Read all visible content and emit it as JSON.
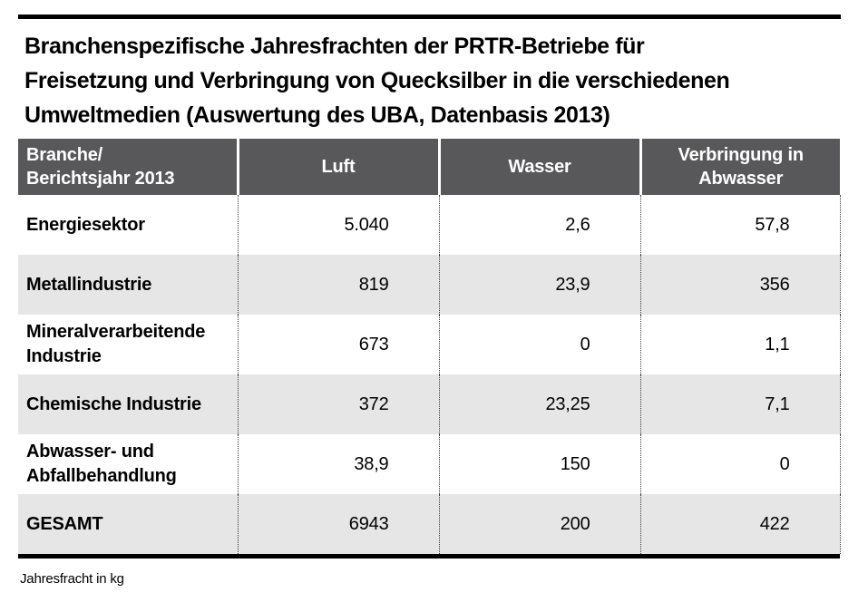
{
  "title": "Branchenspezifische Jahresfrachten der PRTR-Betriebe für\nFreisetzung und Verbringung von Quecksilber in die verschiedenen\nUmweltmedien (Auswertung des UBA, Datenbasis 2013)",
  "caption": "Jahresfracht in kg",
  "colors": {
    "header_bg": "#58585a",
    "alt_row_bg": "#e7e6e6",
    "rule": "#000000",
    "header_text": "#ffffff",
    "body_text": "#000000"
  },
  "table": {
    "headers": {
      "branche": "Branche/\nBerichtsjahr 2013",
      "luft": "Luft",
      "wasser": "Wasser",
      "verbringung": "Verbringung in\nAbwasser"
    },
    "rows": [
      {
        "label": "Energiesektor",
        "luft": "5.040",
        "wasser": "2,6",
        "verbringung": "57,8"
      },
      {
        "label": "Metallindustrie",
        "luft": "819",
        "wasser": "23,9",
        "verbringung": "356"
      },
      {
        "label": "Mineralverarbeitende\nIndustrie",
        "luft": "673",
        "wasser": "0",
        "verbringung": "1,1"
      },
      {
        "label": "Chemische Industrie",
        "luft": "372",
        "wasser": "23,25",
        "verbringung": "7,1"
      },
      {
        "label": "Abwasser- und\nAbfallbehandlung",
        "luft": "38,9",
        "wasser": "150",
        "verbringung": "0"
      },
      {
        "label": "GESAMT",
        "luft": "6943",
        "wasser": "200",
        "verbringung": "422"
      }
    ]
  },
  "chart_data": {
    "type": "table",
    "title": "Branchenspezifische Jahresfrachten der PRTR-Betriebe für Freisetzung und Verbringung von Quecksilber in die verschiedenen Umweltmedien (Auswertung des UBA, Datenbasis 2013)",
    "unit": "Jahresfracht in kg",
    "columns": [
      "Branche/Berichtsjahr 2013",
      "Luft",
      "Wasser",
      "Verbringung in Abwasser"
    ],
    "rows": [
      {
        "branche": "Energiesektor",
        "luft": 5040,
        "wasser": 2.6,
        "verbringung_in_abwasser": 57.8
      },
      {
        "branche": "Metallindustrie",
        "luft": 819,
        "wasser": 23.9,
        "verbringung_in_abwasser": 356
      },
      {
        "branche": "Mineralverarbeitende Industrie",
        "luft": 673,
        "wasser": 0,
        "verbringung_in_abwasser": 1.1
      },
      {
        "branche": "Chemische Industrie",
        "luft": 372,
        "wasser": 23.25,
        "verbringung_in_abwasser": 7.1
      },
      {
        "branche": "Abwasser- und Abfallbehandlung",
        "luft": 38.9,
        "wasser": 150,
        "verbringung_in_abwasser": 0
      },
      {
        "branche": "GESAMT",
        "luft": 6943,
        "wasser": 200,
        "verbringung_in_abwasser": 422
      }
    ]
  }
}
